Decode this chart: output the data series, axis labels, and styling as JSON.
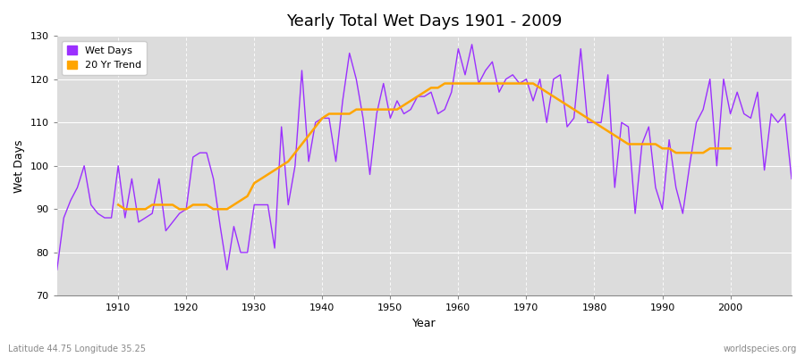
{
  "title": "Yearly Total Wet Days 1901 - 2009",
  "xlabel": "Year",
  "ylabel": "Wet Days",
  "subtitle_left": "Latitude 44.75 Longitude 35.25",
  "subtitle_right": "worldspecies.org",
  "legend_wet": "Wet Days",
  "legend_trend": "20 Yr Trend",
  "wet_color": "#9B30FF",
  "trend_color": "#FFA500",
  "fig_bg_color": "#FFFFFF",
  "plot_bg_color": "#DCDCDC",
  "ylim": [
    70,
    130
  ],
  "xlim": [
    1901,
    2009
  ],
  "years": [
    1901,
    1902,
    1903,
    1904,
    1905,
    1906,
    1907,
    1908,
    1909,
    1910,
    1911,
    1912,
    1913,
    1914,
    1915,
    1916,
    1917,
    1918,
    1919,
    1920,
    1921,
    1922,
    1923,
    1924,
    1925,
    1926,
    1927,
    1928,
    1929,
    1930,
    1931,
    1932,
    1933,
    1934,
    1935,
    1936,
    1937,
    1938,
    1939,
    1940,
    1941,
    1942,
    1943,
    1944,
    1945,
    1946,
    1947,
    1948,
    1949,
    1950,
    1951,
    1952,
    1953,
    1954,
    1955,
    1956,
    1957,
    1958,
    1959,
    1960,
    1961,
    1962,
    1963,
    1964,
    1965,
    1966,
    1967,
    1968,
    1969,
    1970,
    1971,
    1972,
    1973,
    1974,
    1975,
    1976,
    1977,
    1978,
    1979,
    1980,
    1981,
    1982,
    1983,
    1984,
    1985,
    1986,
    1987,
    1988,
    1989,
    1990,
    1991,
    1992,
    1993,
    1994,
    1995,
    1996,
    1997,
    1998,
    1999,
    2000,
    2001,
    2002,
    2003,
    2004,
    2005,
    2006,
    2007,
    2008,
    2009
  ],
  "wet_days": [
    76,
    88,
    92,
    95,
    100,
    91,
    89,
    88,
    88,
    100,
    88,
    97,
    87,
    88,
    89,
    97,
    85,
    87,
    89,
    90,
    102,
    103,
    103,
    97,
    86,
    76,
    86,
    80,
    80,
    91,
    91,
    91,
    81,
    109,
    91,
    100,
    122,
    101,
    110,
    111,
    111,
    101,
    115,
    126,
    120,
    111,
    98,
    112,
    119,
    111,
    115,
    112,
    113,
    116,
    116,
    117,
    112,
    113,
    117,
    127,
    121,
    128,
    119,
    122,
    124,
    117,
    120,
    121,
    119,
    120,
    115,
    120,
    110,
    120,
    121,
    109,
    111,
    127,
    110,
    110,
    110,
    121,
    95,
    110,
    109,
    89,
    105,
    109,
    95,
    90,
    106,
    95,
    89,
    100,
    110,
    113,
    120,
    100,
    120,
    112,
    117,
    112,
    111,
    117,
    99,
    112,
    110,
    112,
    97
  ],
  "trend_years": [
    1910,
    1911,
    1912,
    1913,
    1914,
    1915,
    1916,
    1917,
    1918,
    1919,
    1920,
    1921,
    1922,
    1923,
    1924,
    1925,
    1926,
    1927,
    1928,
    1929,
    1930,
    1931,
    1932,
    1933,
    1934,
    1935,
    1936,
    1937,
    1938,
    1939,
    1940,
    1941,
    1942,
    1943,
    1944,
    1945,
    1946,
    1947,
    1948,
    1949,
    1950,
    1951,
    1952,
    1953,
    1954,
    1955,
    1956,
    1957,
    1958,
    1959,
    1960,
    1961,
    1962,
    1963,
    1964,
    1965,
    1966,
    1967,
    1968,
    1969,
    1970,
    1971,
    1972,
    1973,
    1974,
    1975,
    1976,
    1977,
    1978,
    1979,
    1980,
    1981,
    1982,
    1983,
    1984,
    1985,
    1986,
    1987,
    1988,
    1989,
    1990,
    1991,
    1992,
    1993,
    1994,
    1995,
    1996,
    1997,
    1998,
    1999,
    2000
  ],
  "trend_vals": [
    91,
    90,
    90,
    90,
    90,
    91,
    91,
    91,
    91,
    90,
    90,
    91,
    91,
    91,
    90,
    90,
    90,
    91,
    92,
    93,
    96,
    97,
    98,
    99,
    100,
    101,
    103,
    105,
    107,
    109,
    111,
    112,
    112,
    112,
    112,
    113,
    113,
    113,
    113,
    113,
    113,
    113,
    114,
    115,
    116,
    117,
    118,
    118,
    119,
    119,
    119,
    119,
    119,
    119,
    119,
    119,
    119,
    119,
    119,
    119,
    119,
    119,
    118,
    117,
    116,
    115,
    114,
    113,
    112,
    111,
    110,
    109,
    108,
    107,
    106,
    105,
    105,
    105,
    105,
    105,
    104,
    104,
    103,
    103,
    103,
    103,
    103,
    104,
    104,
    104,
    104
  ]
}
